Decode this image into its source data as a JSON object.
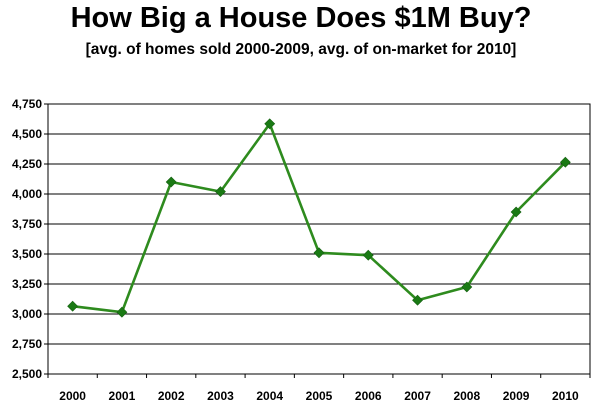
{
  "chart_data": {
    "type": "line",
    "title": "How Big a House Does $1M Buy?",
    "subtitle": "[avg. of homes sold 2000-2009, avg. of on-market for 2010]",
    "categories": [
      "2000",
      "2001",
      "2002",
      "2003",
      "2004",
      "2005",
      "2006",
      "2007",
      "2008",
      "2009",
      "2010"
    ],
    "series": [
      {
        "values": [
          3065,
          3015,
          4100,
          4020,
          4585,
          3510,
          3490,
          3115,
          3225,
          3850,
          4265
        ]
      }
    ],
    "ylim": [
      2500,
      4750
    ],
    "yticks": [
      2500,
      2750,
      3000,
      3250,
      3500,
      3750,
      4000,
      4250,
      4500,
      4750
    ],
    "ytick_labels": [
      "2,500",
      "2,750",
      "3,000",
      "3,250",
      "3,500",
      "3,750",
      "4,000",
      "4,250",
      "4,500",
      "4,750"
    ],
    "grid": true,
    "legend": "none",
    "line_color": "#2e8b1e",
    "marker_color": "#1a7a14",
    "marker": "diamond",
    "xlabel": "",
    "ylabel": ""
  }
}
